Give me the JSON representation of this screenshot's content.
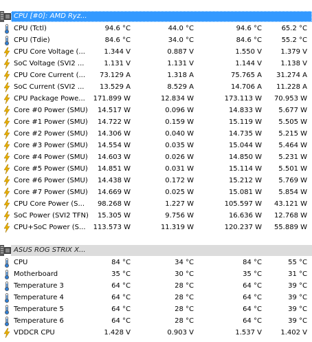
{
  "groups": {
    "cpu": {
      "title": "CPU [#0]: AMD Ryz...",
      "rows": [
        {
          "icon": "thermometer-icon",
          "label": "CPU (Tctl)",
          "current": "94.6 °C",
          "min": "44.0 °C",
          "max": "94.6 °C",
          "avg": "65.2 °C"
        },
        {
          "icon": "thermometer-icon",
          "label": "CPU (Tdie)",
          "current": "84.6 °C",
          "min": "34.0 °C",
          "max": "84.6 °C",
          "avg": "55.2 °C"
        },
        {
          "icon": "lightning-icon",
          "label": "CPU Core Voltage (...",
          "current": "1.344 V",
          "min": "0.887 V",
          "max": "1.550 V",
          "avg": "1.379 V"
        },
        {
          "icon": "lightning-icon",
          "label": "SoC Voltage (SVI2 ...",
          "current": "1.131 V",
          "min": "1.131 V",
          "max": "1.144 V",
          "avg": "1.138 V"
        },
        {
          "icon": "lightning-icon",
          "label": "CPU Core Current (...",
          "current": "73.129 A",
          "min": "1.318 A",
          "max": "75.765 A",
          "avg": "31.274 A"
        },
        {
          "icon": "lightning-icon",
          "label": "SoC Current (SVI2 ...",
          "current": "13.529 A",
          "min": "8.529 A",
          "max": "14.706 A",
          "avg": "11.228 A"
        },
        {
          "icon": "lightning-icon",
          "label": "CPU Package Powe...",
          "current": "171.899 W",
          "min": "12.834 W",
          "max": "173.113 W",
          "avg": "70.953 W"
        },
        {
          "icon": "lightning-icon",
          "label": "Core #0 Power (SMU)",
          "current": "14.517 W",
          "min": "0.096 W",
          "max": "14.833 W",
          "avg": "5.677 W"
        },
        {
          "icon": "lightning-icon",
          "label": "Core #1 Power (SMU)",
          "current": "14.722 W",
          "min": "0.159 W",
          "max": "15.119 W",
          "avg": "5.505 W"
        },
        {
          "icon": "lightning-icon",
          "label": "Core #2 Power (SMU)",
          "current": "14.306 W",
          "min": "0.040 W",
          "max": "14.735 W",
          "avg": "5.215 W"
        },
        {
          "icon": "lightning-icon",
          "label": "Core #3 Power (SMU)",
          "current": "14.554 W",
          "min": "0.035 W",
          "max": "15.044 W",
          "avg": "5.464 W"
        },
        {
          "icon": "lightning-icon",
          "label": "Core #4 Power (SMU)",
          "current": "14.603 W",
          "min": "0.026 W",
          "max": "14.850 W",
          "avg": "5.231 W"
        },
        {
          "icon": "lightning-icon",
          "label": "Core #5 Power (SMU)",
          "current": "14.851 W",
          "min": "0.031 W",
          "max": "15.114 W",
          "avg": "5.501 W"
        },
        {
          "icon": "lightning-icon",
          "label": "Core #6 Power (SMU)",
          "current": "14.438 W",
          "min": "0.172 W",
          "max": "15.212 W",
          "avg": "5.769 W"
        },
        {
          "icon": "lightning-icon",
          "label": "Core #7 Power (SMU)",
          "current": "14.669 W",
          "min": "0.025 W",
          "max": "15.081 W",
          "avg": "5.854 W"
        },
        {
          "icon": "lightning-icon",
          "label": "CPU Core Power (S...",
          "current": "98.268 W",
          "min": "1.227 W",
          "max": "105.597 W",
          "avg": "43.121 W"
        },
        {
          "icon": "lightning-icon",
          "label": "SoC Power (SVI2 TFN)",
          "current": "15.305 W",
          "min": "9.756 W",
          "max": "16.636 W",
          "avg": "12.768 W"
        },
        {
          "icon": "lightning-icon",
          "label": "CPU+SoC Power (S...",
          "current": "113.573 W",
          "min": "11.319 W",
          "max": "120.237 W",
          "avg": "55.889 W"
        }
      ]
    },
    "board": {
      "title": "ASUS ROG STRIX X...",
      "rows": [
        {
          "icon": "thermometer-icon",
          "label": "CPU",
          "current": "84 °C",
          "min": "34 °C",
          "max": "84 °C",
          "avg": "55 °C"
        },
        {
          "icon": "thermometer-icon",
          "label": "Motherboard",
          "current": "35 °C",
          "min": "30 °C",
          "max": "35 °C",
          "avg": "31 °C"
        },
        {
          "icon": "thermometer-icon",
          "label": "Temperature 3",
          "current": "64 °C",
          "min": "28 °C",
          "max": "64 °C",
          "avg": "39 °C"
        },
        {
          "icon": "thermometer-icon",
          "label": "Temperature 4",
          "current": "64 °C",
          "min": "28 °C",
          "max": "64 °C",
          "avg": "39 °C"
        },
        {
          "icon": "thermometer-icon",
          "label": "Temperature 5",
          "current": "64 °C",
          "min": "28 °C",
          "max": "64 °C",
          "avg": "39 °C"
        },
        {
          "icon": "thermometer-icon",
          "label": "Temperature 6",
          "current": "64 °C",
          "min": "28 °C",
          "max": "64 °C",
          "avg": "39 °C"
        },
        {
          "icon": "lightning-icon",
          "label": "VDDCR CPU",
          "current": "1.428 V",
          "min": "0.903 V",
          "max": "1.537 V",
          "avg": "1.402 V"
        }
      ]
    }
  },
  "colors": {
    "selected": "#3399ff",
    "header": "#dcdcdc",
    "thermometer": "#2f7fd6",
    "lightning": "#e8b000"
  }
}
